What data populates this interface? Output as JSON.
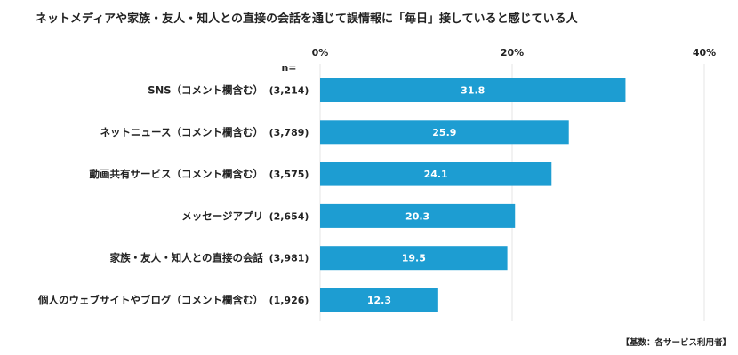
{
  "chart_data": {
    "type": "bar",
    "orientation": "horizontal",
    "title": "ネットメディアや家族・友人・知人との直接の会話を通じて誤情報に「毎日」接していると感じている人",
    "categories": [
      "SNS（コメント欄含む）",
      "ネットニュース（コメント欄含む）",
      "動画共有サービス（コメント欄含む）",
      "メッセージアプリ",
      "家族・友人・知人との直接の会話",
      "個人のウェブサイトやブログ（コメント欄含む）"
    ],
    "n_header": "n=",
    "n_values": [
      "(3,214)",
      "(3,789)",
      "(3,575)",
      "(2,654)",
      "(3,981)",
      "(1,926)"
    ],
    "values": [
      31.8,
      25.9,
      24.1,
      20.3,
      19.5,
      12.3
    ],
    "xlim": [
      0,
      40
    ],
    "xticks": [
      0,
      20,
      40
    ],
    "xtick_labels": [
      "0%",
      "20%",
      "40%"
    ],
    "grid": "vertical gridlines at 20% and 40%",
    "bar_color": "#1d9dd2",
    "note": "【基数：各サービス利用者】"
  }
}
